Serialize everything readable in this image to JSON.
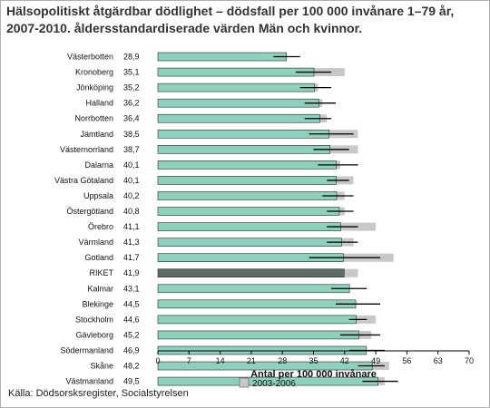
{
  "title": "Hälsopolitiskt åtgärdbar dödlighet – dödsfall per 100 000 invånare 1–79 år, 2007-2010. åldersstandardiserade värden  Män och kvinnor.",
  "source": "Källa: Dödsorsksregister, Socialstyrelsen",
  "colors": {
    "current": "#8dd1bc",
    "riket": "#5e6b66",
    "previous": "#c8c8c8",
    "ci": "#000000"
  },
  "chart_data": {
    "type": "bar",
    "orientation": "horizontal",
    "categories": [
      "Västerbotten",
      "Kronoberg",
      "Jönköping",
      "Halland",
      "Norrbotten",
      "Jämtland",
      "Västernorrland",
      "Dalarna",
      "Västra Götaland",
      "Uppsala",
      "Östergötland",
      "Örebro",
      "Värmland",
      "Gotland",
      "RIKET",
      "Kalmar",
      "Blekinge",
      "Stockholm",
      "Gävleborg",
      "Södermanland",
      "Skåne",
      "Västmanland"
    ],
    "value_labels": [
      "28,9",
      "35,1",
      "35,2",
      "36,2",
      "36,4",
      "38,5",
      "38,7",
      "40,1",
      "40,1",
      "40,2",
      "40,8",
      "41,1",
      "41,3",
      "41,7",
      "41,9",
      "43,1",
      "44,5",
      "44,6",
      "45,2",
      "46,9",
      "48,2",
      "49,5"
    ],
    "values": [
      28.9,
      35.1,
      35.2,
      36.2,
      36.4,
      38.5,
      38.7,
      40.1,
      40.1,
      40.2,
      40.8,
      41.1,
      41.3,
      41.7,
      41.9,
      43.1,
      44.5,
      44.6,
      45.2,
      46.9,
      48.2,
      49.5
    ],
    "ci_low": [
      26,
      31,
      32,
      33,
      33,
      34,
      35,
      36,
      38,
      37,
      38,
      38,
      38,
      34,
      null,
      39,
      40,
      43,
      41,
      43,
      45,
      46
    ],
    "ci_high": [
      32,
      39,
      39,
      40,
      39,
      44,
      43,
      45,
      43,
      44,
      44,
      45,
      45,
      50,
      null,
      47,
      50,
      47,
      50,
      51,
      51,
      54
    ],
    "series_previous": {
      "name": "2003-2006",
      "values": [
        29,
        42,
        36,
        37,
        38,
        45,
        45,
        41,
        44,
        42,
        42,
        49,
        44,
        53,
        45,
        40,
        44,
        49,
        48,
        46,
        52,
        51
      ]
    },
    "xlabel": "Antal per 100 000 invånare",
    "xlim": [
      0,
      70
    ],
    "xticks": [
      "0",
      "7",
      "14",
      "21",
      "28",
      "35",
      "42",
      "49",
      "56",
      "63",
      "70"
    ],
    "legend_position": "bottom",
    "grid": false
  }
}
